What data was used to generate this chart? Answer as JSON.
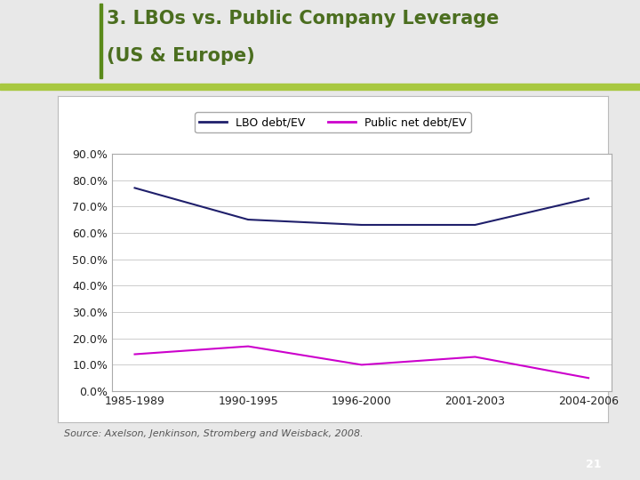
{
  "title_line1": "3. LBOs vs. Public Company Leverage",
  "title_line2": "(US & Europe)",
  "categories": [
    "1985-1989",
    "1990-1995",
    "1996-2000",
    "2001-2003",
    "2004-2006"
  ],
  "lbo_values": [
    0.77,
    0.65,
    0.63,
    0.63,
    0.73
  ],
  "public_values": [
    0.14,
    0.17,
    0.1,
    0.13,
    0.05
  ],
  "lbo_color": "#1F1F6B",
  "public_color": "#CC00CC",
  "ylim": [
    0.0,
    0.9
  ],
  "yticks": [
    0.0,
    0.1,
    0.2,
    0.3,
    0.4,
    0.5,
    0.6,
    0.7,
    0.8,
    0.9
  ],
  "legend_lbo": "LBO debt/EV",
  "legend_public": "Public net debt/EV",
  "source_text": "Source: Axelson, Jenkinson, Stromberg and Weisback, 2008.",
  "bg_color": "#E8E8E8",
  "plot_area_color": "#FFFFFF",
  "title_color": "#4B6E1F",
  "page_num": "21",
  "green_bar_color": "#5A8A1A",
  "line_width": 1.5,
  "grid_color": "#CCCCCC",
  "title_fontsize": 15,
  "source_fontsize": 8,
  "axis_fontsize": 9
}
